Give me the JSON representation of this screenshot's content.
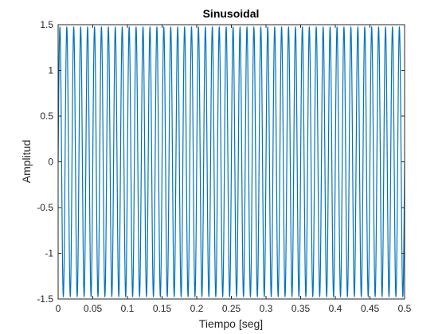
{
  "chart_data": {
    "type": "line",
    "title": "Sinusoidal",
    "xlabel": "Tiempo [seg]",
    "ylabel": "Amplitud",
    "xlim": [
      0,
      0.5
    ],
    "ylim": [
      -1.5,
      1.5
    ],
    "xticks": [
      0,
      0.05,
      0.1,
      0.15,
      0.2,
      0.25,
      0.3,
      0.35,
      0.4,
      0.45,
      0.5
    ],
    "xtick_labels": [
      "0",
      "0.05",
      "0.1",
      "0.15",
      "0.2",
      "0.25",
      "0.3",
      "0.35",
      "0.4",
      "0.45",
      "0.5"
    ],
    "yticks": [
      -1.5,
      -1,
      -0.5,
      0,
      0.5,
      1,
      1.5
    ],
    "ytick_labels": [
      "-1.5",
      "-1",
      "-0.5",
      "0",
      "0.5",
      "1",
      "1.5"
    ],
    "grid": false,
    "series": [
      {
        "function": "sine",
        "amplitude": 1.47,
        "frequency_hz": 100,
        "x_start": 0,
        "x_end": 0.5,
        "color": "#0072BD"
      }
    ]
  }
}
